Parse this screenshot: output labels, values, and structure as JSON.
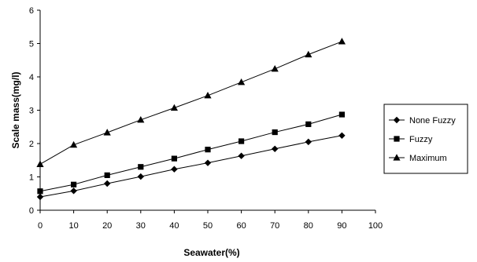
{
  "chart_data": {
    "type": "line",
    "title": "",
    "xlabel": "Seawater(%)",
    "ylabel": "Scale mass(mg/l)",
    "xlim": [
      0,
      100
    ],
    "ylim": [
      0,
      6
    ],
    "xticks": [
      0,
      10,
      20,
      30,
      40,
      50,
      60,
      70,
      80,
      90,
      100
    ],
    "yticks": [
      0,
      1,
      2,
      3,
      4,
      5,
      6
    ],
    "grid": false,
    "legend_position": "right",
    "x": [
      0,
      10,
      20,
      30,
      40,
      50,
      60,
      70,
      80,
      90
    ],
    "series": [
      {
        "name": "None Fuzzy",
        "marker": "diamond",
        "color": "#000000",
        "values": [
          0.4,
          0.58,
          0.8,
          1.01,
          1.23,
          1.42,
          1.63,
          1.84,
          2.05,
          2.24
        ]
      },
      {
        "name": "Fuzzy",
        "marker": "square",
        "color": "#000000",
        "values": [
          0.57,
          0.77,
          1.05,
          1.3,
          1.55,
          1.82,
          2.07,
          2.34,
          2.58,
          2.87
        ]
      },
      {
        "name": "Maximum",
        "marker": "triangle",
        "color": "#000000",
        "values": [
          1.38,
          1.96,
          2.33,
          2.71,
          3.07,
          3.44,
          3.84,
          4.24,
          4.67,
          5.06
        ]
      }
    ]
  }
}
